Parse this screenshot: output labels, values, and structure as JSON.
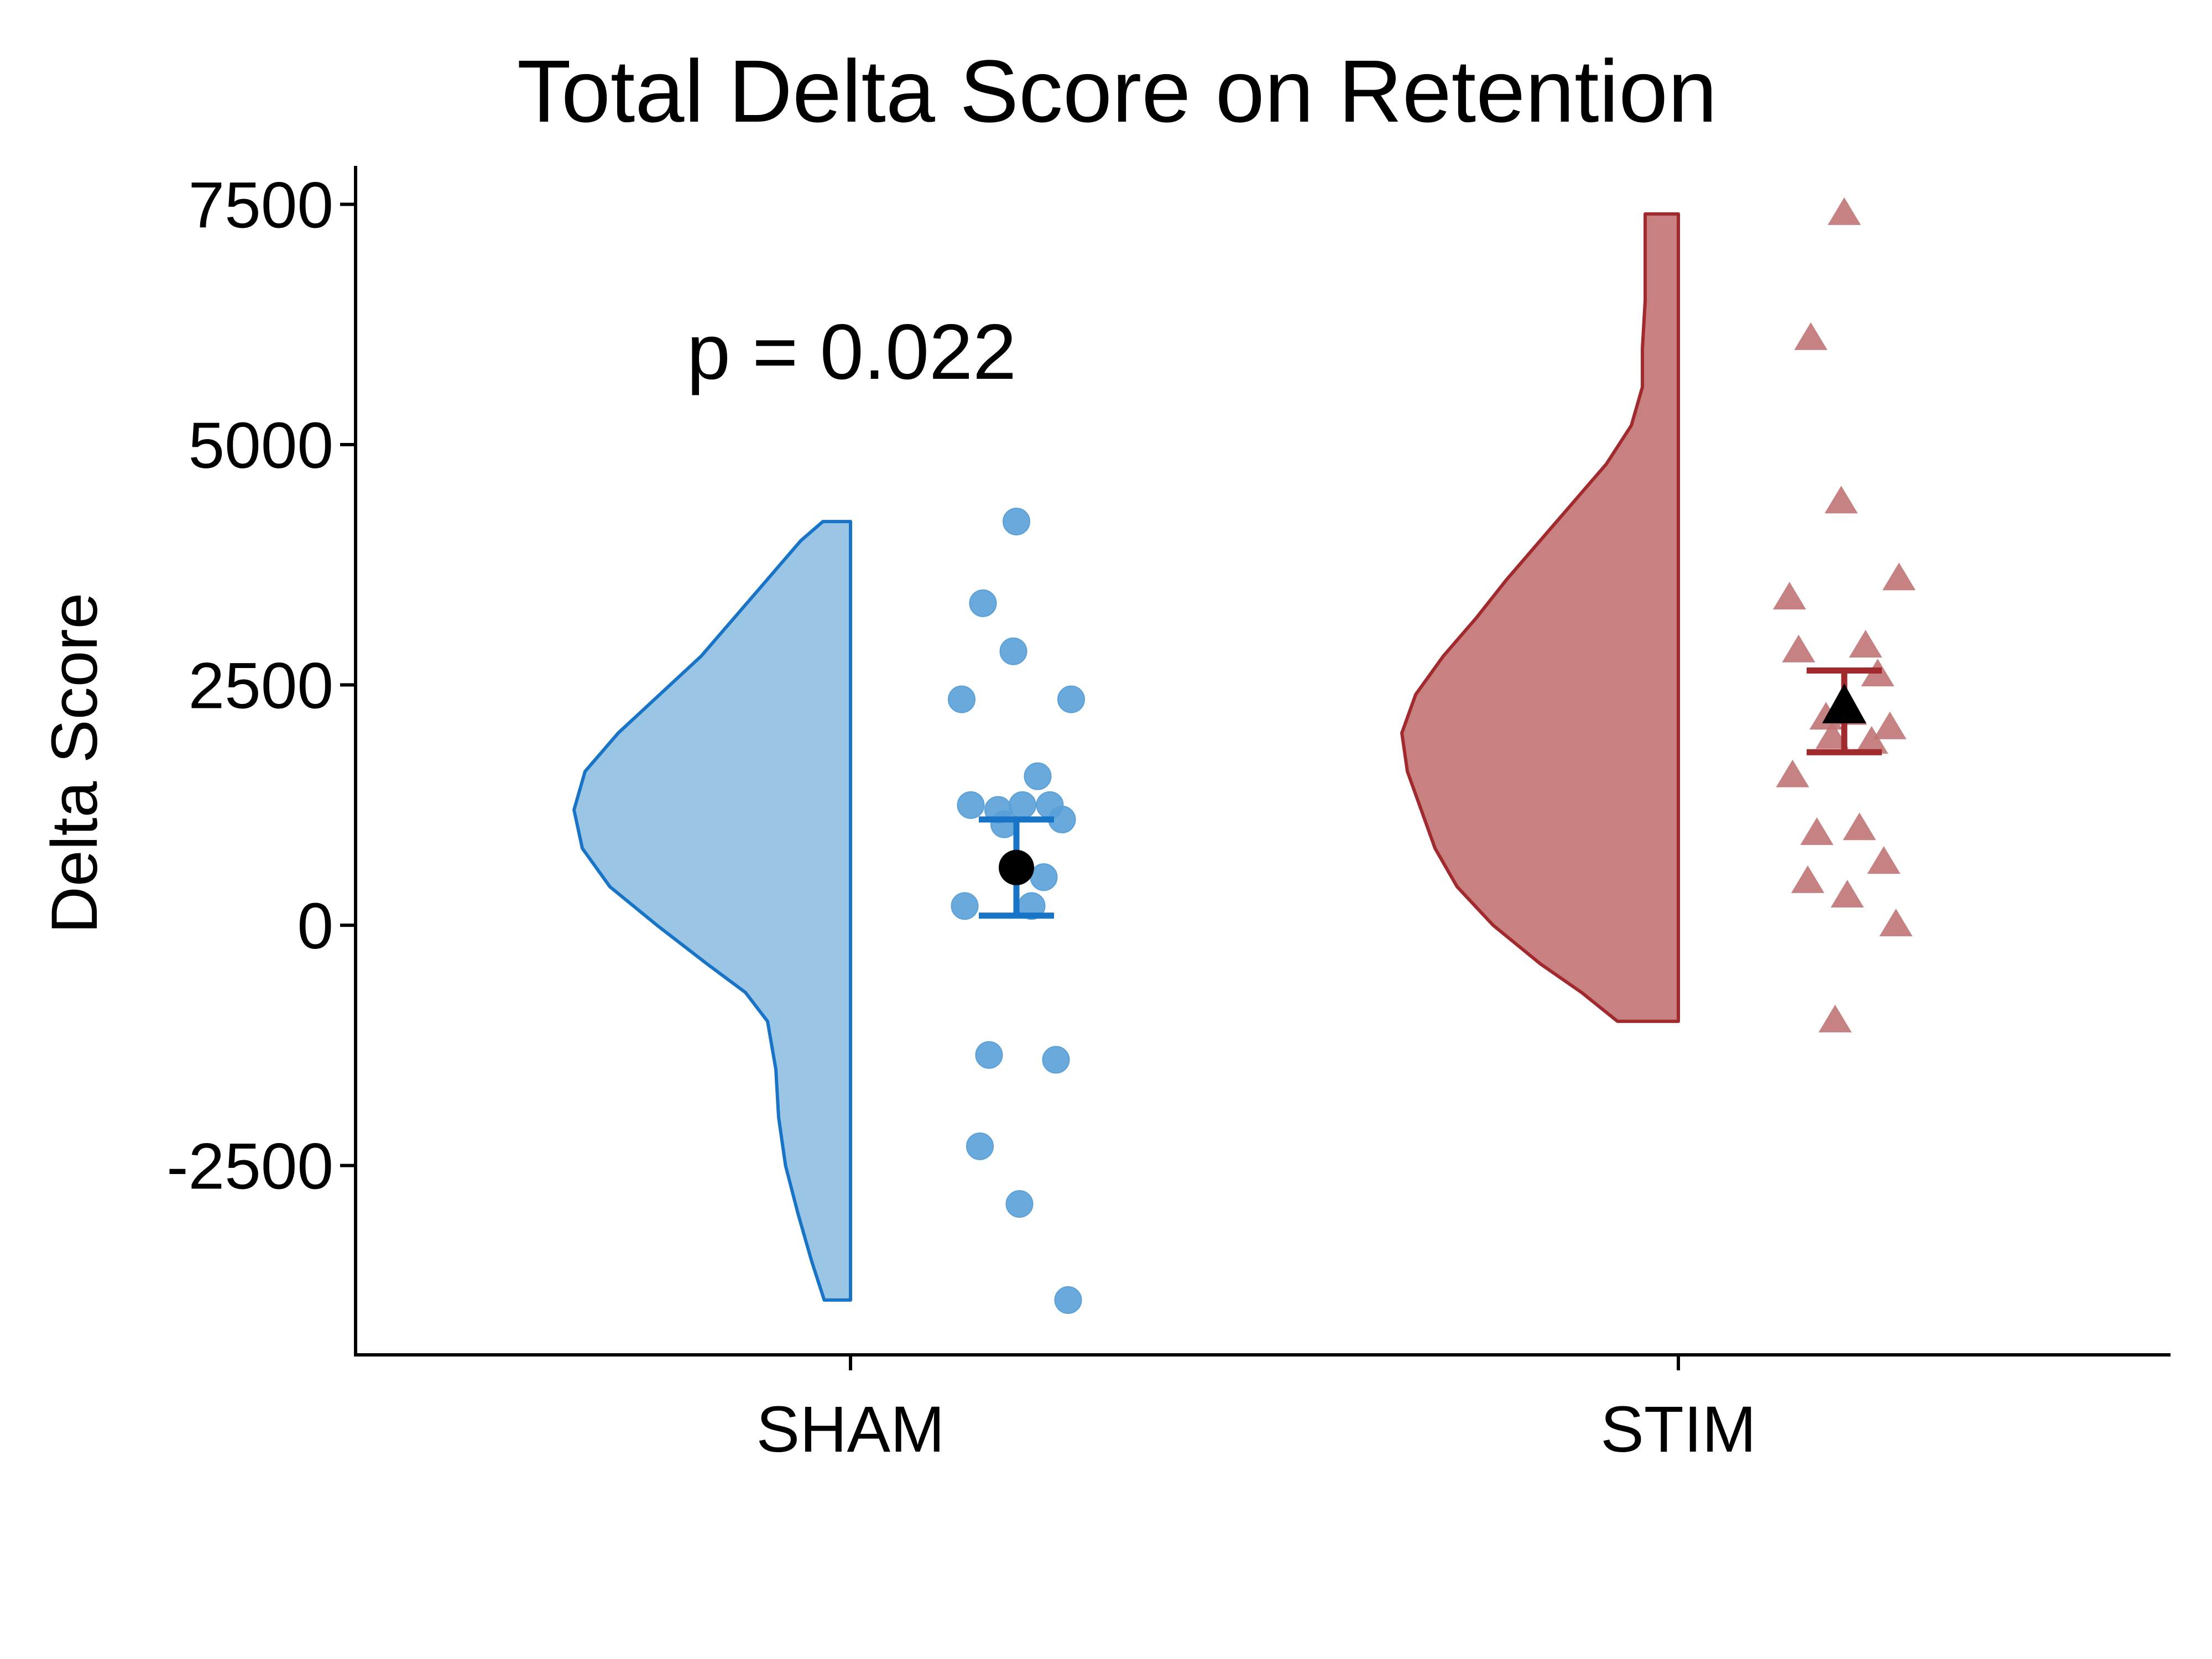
{
  "chart_data": {
    "type": "raincloud",
    "title": "Total Delta Score on Retention",
    "xlabel": "",
    "ylabel": "Delta Score",
    "ylim": [
      -4470,
      7900
    ],
    "yticks": [
      -2500,
      0,
      2500,
      5000,
      7500
    ],
    "ytick_labels": [
      "-2500",
      "0",
      "2500",
      "5000",
      "7500"
    ],
    "grid": false,
    "legend": "none",
    "annotation": "p = 0.022",
    "categories": [
      "SHAM",
      "STIM"
    ],
    "series": [
      {
        "category": "SHAM",
        "color": "#1874c6",
        "fill": "#9bc5e5",
        "point_color": "#5aa0d8",
        "marker": "circle",
        "points": [
          4200,
          3350,
          2850,
          2350,
          2350,
          1550,
          1250,
          1250,
          1250,
          1200,
          1100,
          1050,
          500,
          200,
          200,
          -1350,
          -1400,
          -2300,
          -2900,
          -3900
        ],
        "mean": 600,
        "ci": [
          100,
          1100
        ],
        "density": {
          "y": [
            -3900,
            -3500,
            -3000,
            -2500,
            -2000,
            -1500,
            -1000,
            -700,
            -400,
            0,
            400,
            800,
            1200,
            1600,
            2000,
            2400,
            2800,
            3200,
            3600,
            4000,
            4200
          ],
          "d": [
            0.095,
            0.14,
            0.19,
            0.235,
            0.26,
            0.27,
            0.3,
            0.38,
            0.52,
            0.7,
            0.87,
            0.97,
            1.0,
            0.96,
            0.84,
            0.69,
            0.54,
            0.42,
            0.3,
            0.18,
            0.1
          ]
        }
      },
      {
        "category": "STIM",
        "color": "#a12a2e",
        "fill": "#c98080",
        "point_color": "#c07474",
        "marker": "triangle",
        "points": [
          7400,
          6100,
          4400,
          3600,
          3400,
          2900,
          2850,
          2600,
          2200,
          2150,
          2050,
          1950,
          1900,
          1550,
          1000,
          950,
          650,
          450,
          300,
          0,
          -1000
        ],
        "mean": 2250,
        "ci": [
          1800,
          2650
        ],
        "density": {
          "y": [
            -1000,
            -700,
            -400,
            0,
            400,
            800,
            1200,
            1600,
            2000,
            2400,
            2800,
            3200,
            3600,
            4000,
            4400,
            4800,
            5200,
            5600,
            6000,
            6500,
            7000,
            7400
          ],
          "d": [
            0.22,
            0.35,
            0.5,
            0.67,
            0.8,
            0.88,
            0.93,
            0.98,
            1.0,
            0.95,
            0.85,
            0.73,
            0.62,
            0.5,
            0.38,
            0.26,
            0.17,
            0.13,
            0.13,
            0.12,
            0.12,
            0.12
          ]
        }
      }
    ]
  }
}
